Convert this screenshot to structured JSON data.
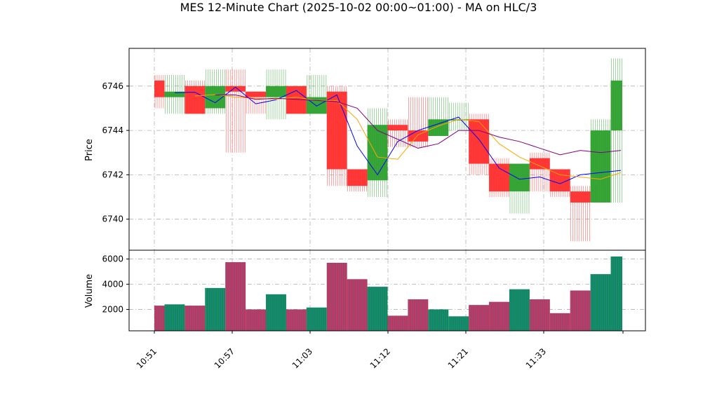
{
  "chart_data": {
    "type": "candlestick",
    "title": "MES 12-Minute Chart (2025-10-02 00:00~01:00) - MA on HLC/3",
    "panels": [
      {
        "name": "price",
        "ylabel": "Price",
        "ylim": [
          6738.6,
          6747.7
        ],
        "yticks": [
          6740,
          6742,
          6744,
          6746
        ]
      },
      {
        "name": "volume",
        "ylabel": "Volume",
        "ylim": [
          300,
          6700
        ],
        "yticks": [
          2000,
          4000,
          6000
        ]
      }
    ],
    "x_tick_labels": [
      {
        "x": 10.51,
        "label": "10:51"
      },
      {
        "x": 10.57,
        "label": "10:57"
      },
      {
        "x": 11.03,
        "label": "11:03"
      },
      {
        "x": 11.12,
        "label": "11:12"
      },
      {
        "x": 11.21,
        "label": "11:21"
      },
      {
        "x": 11.33,
        "label": "11:33"
      },
      {
        "x": 11.4,
        "label": ""
      }
    ],
    "grid": true,
    "candles": [
      {
        "open": 6746.25,
        "high": 6746.5,
        "low": 6745.0,
        "close": 6745.5,
        "volume": 2300
      },
      {
        "open": 6745.5,
        "high": 6746.5,
        "low": 6744.75,
        "close": 6745.75,
        "volume": 2400
      },
      {
        "open": 6746.0,
        "high": 6746.25,
        "low": 6744.75,
        "close": 6744.75,
        "volume": 2300
      },
      {
        "open": 6745.0,
        "high": 6746.75,
        "low": 6744.75,
        "close": 6746.0,
        "volume": 3700
      },
      {
        "open": 6746.0,
        "high": 6746.75,
        "low": 6743.0,
        "close": 6745.75,
        "volume": 5750
      },
      {
        "open": 6745.75,
        "high": 6745.75,
        "low": 6744.75,
        "close": 6745.5,
        "volume": 2000
      },
      {
        "open": 6745.5,
        "high": 6746.75,
        "low": 6744.5,
        "close": 6746.0,
        "volume": 3200
      },
      {
        "open": 6746.0,
        "high": 6746.0,
        "low": 6744.75,
        "close": 6744.75,
        "volume": 2000
      },
      {
        "open": 6744.75,
        "high": 6746.5,
        "low": 6744.75,
        "close": 6745.5,
        "volume": 2150
      },
      {
        "open": 6745.75,
        "high": 6746.0,
        "low": 6741.5,
        "close": 6742.25,
        "volume": 5700
      },
      {
        "open": 6742.25,
        "high": 6742.25,
        "low": 6741.25,
        "close": 6741.5,
        "volume": 4400
      },
      {
        "open": 6741.75,
        "high": 6745.0,
        "low": 6741.0,
        "close": 6744.25,
        "volume": 3800
      },
      {
        "open": 6744.25,
        "high": 6744.5,
        "low": 6743.25,
        "close": 6744.0,
        "volume": 1500
      },
      {
        "open": 6744.0,
        "high": 6745.5,
        "low": 6743.25,
        "close": 6743.5,
        "volume": 2800
      },
      {
        "open": 6743.75,
        "high": 6745.5,
        "low": 6743.75,
        "close": 6744.5,
        "volume": 2000
      },
      {
        "open": 6744.5,
        "high": 6745.25,
        "low": 6744.0,
        "close": 6744.5,
        "volume": 1450
      },
      {
        "open": 6744.5,
        "high": 6744.75,
        "low": 6742.0,
        "close": 6742.5,
        "volume": 2350
      },
      {
        "open": 6742.5,
        "high": 6742.75,
        "low": 6741.0,
        "close": 6741.25,
        "volume": 2600
      },
      {
        "open": 6741.25,
        "high": 6742.5,
        "low": 6740.25,
        "close": 6742.5,
        "volume": 3600
      },
      {
        "open": 6742.75,
        "high": 6743.0,
        "low": 6741.25,
        "close": 6742.25,
        "volume": 2800
      },
      {
        "open": 6742.25,
        "high": 6742.25,
        "low": 6741.0,
        "close": 6741.25,
        "volume": 1700
      },
      {
        "open": 6741.25,
        "high": 6741.5,
        "low": 6739.0,
        "close": 6740.75,
        "volume": 3500
      },
      {
        "open": 6740.75,
        "high": 6744.5,
        "low": 6740.75,
        "close": 6744.0,
        "volume": 4800
      },
      {
        "open": 6744.0,
        "high": 6747.25,
        "low": 6740.75,
        "close": 6746.25,
        "volume": 6200
      }
    ],
    "moving_averages": [
      {
        "color": "#0000ff",
        "values": [
          null,
          6745.7,
          6745.72,
          6745.25,
          6745.95,
          6745.2,
          6745.38,
          6745.8,
          6745.1,
          6745.6,
          6743.3,
          6742.0,
          6743.5,
          6744.0,
          6744.3,
          6744.6,
          6743.6,
          6742.3,
          6741.8,
          6741.9,
          6741.6,
          6742.0,
          6742.1,
          6742.2
        ]
      },
      {
        "color": "#ffa500",
        "values": [
          null,
          null,
          6745.55,
          6745.62,
          6745.5,
          6745.45,
          6745.4,
          6745.5,
          6745.35,
          6745.35,
          6744.5,
          6742.8,
          6742.7,
          6743.8,
          6744.2,
          6744.5,
          6744.4,
          6743.4,
          6742.8,
          6742.4,
          6742.0,
          6741.9,
          6741.8,
          6742.1
        ]
      },
      {
        "color": "#800080",
        "values": [
          null,
          null,
          null,
          6745.6,
          6745.6,
          6745.4,
          6745.45,
          6745.4,
          6745.35,
          6745.3,
          6745.0,
          6744.0,
          6743.6,
          6743.2,
          6743.4,
          6744.0,
          6744.0,
          6743.7,
          6743.5,
          6743.2,
          6742.9,
          6743.1,
          6743.0,
          6743.1
        ]
      }
    ]
  },
  "colors": {
    "up": "#2ca02c",
    "down": "#ff2d2d",
    "volume_up": "#0e8a5f",
    "volume_down": "#b83860",
    "volume_edge": "#5a7fbf",
    "grid": "#b0b0b0"
  }
}
